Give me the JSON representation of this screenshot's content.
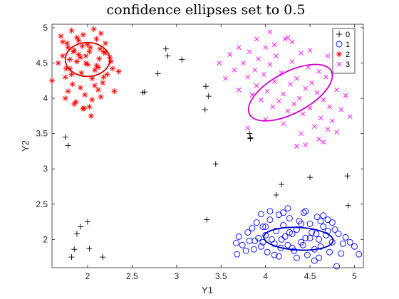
{
  "chart_data": {
    "type": "scatter",
    "title": "confidence ellipses set to 0.5",
    "xlabel": "Y1",
    "ylabel": "Y2",
    "xlim": [
      1.6,
      5.1
    ],
    "ylim": [
      1.6,
      5.05
    ],
    "xticks": [
      2,
      2.5,
      3,
      3.5,
      4,
      4.5,
      5
    ],
    "yticks": [
      2,
      2.5,
      3,
      3.5,
      4,
      4.5,
      5
    ],
    "grid": false,
    "legend_position": "top-right",
    "series": [
      {
        "name": "0",
        "marker": "plus",
        "color": "#000000",
        "x": [
          1.75,
          1.78,
          1.82,
          1.85,
          1.88,
          1.92,
          2.0,
          2.02,
          2.17,
          2.62,
          2.64,
          2.79,
          2.88,
          2.9,
          3.06,
          3.32,
          3.33,
          3.36,
          3.34,
          3.44,
          3.82,
          3.83,
          3.83,
          4.12,
          4.18,
          4.5,
          4.92,
          4.93
        ],
        "y": [
          3.45,
          3.33,
          1.75,
          1.86,
          2.08,
          2.18,
          2.25,
          1.87,
          1.75,
          4.08,
          4.09,
          4.35,
          4.7,
          4.6,
          4.55,
          3.84,
          4.17,
          4.03,
          2.28,
          3.07,
          3.5,
          3.44,
          3.43,
          2.63,
          2.78,
          2.88,
          2.9,
          2.48
        ]
      },
      {
        "name": "1",
        "marker": "circle",
        "color": "#0000ff",
        "ellipse": {
          "cx": 4.37,
          "cy": 2.01,
          "rx": 0.39,
          "ry": 0.16,
          "angle": 3
        },
        "x": [
          3.67,
          3.68,
          3.7,
          3.74,
          3.78,
          3.8,
          3.82,
          3.85,
          3.87,
          3.9,
          3.92,
          3.95,
          3.97,
          4.0,
          4.02,
          4.05,
          4.07,
          4.1,
          4.12,
          4.15,
          4.17,
          4.2,
          4.22,
          4.25,
          4.27,
          4.3,
          4.32,
          4.35,
          4.38,
          4.4,
          4.43,
          4.45,
          4.47,
          4.5,
          4.52,
          4.55,
          4.58,
          4.6,
          4.62,
          4.65,
          4.68,
          4.7,
          4.72,
          4.75,
          4.78,
          4.8,
          4.85,
          4.9,
          4.95,
          5.0,
          5.05,
          3.95,
          4.05,
          4.15,
          4.25,
          4.35,
          4.45,
          4.55,
          4.65,
          4.75,
          4.0,
          4.1,
          4.2,
          4.3,
          4.4,
          4.5,
          4.6,
          4.7,
          3.88,
          4.18,
          4.42,
          4.62,
          4.82,
          3.97,
          4.27,
          4.57,
          4.87
        ],
        "y": [
          1.95,
          1.79,
          2.04,
          1.92,
          1.84,
          2.1,
          1.98,
          2.16,
          1.86,
          2.24,
          2.02,
          1.9,
          2.18,
          2.06,
          1.82,
          2.28,
          2.0,
          1.94,
          2.12,
          2.35,
          1.88,
          2.2,
          2.04,
          1.92,
          2.3,
          2.08,
          1.84,
          2.14,
          2.26,
          1.96,
          2.38,
          2.02,
          1.78,
          2.22,
          2.1,
          1.86,
          2.32,
          2.0,
          1.9,
          2.18,
          2.06,
          2.28,
          1.82,
          1.96,
          2.14,
          1.62,
          1.8,
          2.03,
          1.96,
          1.9,
          1.79,
          2.36,
          2.4,
          1.76,
          2.44,
          1.74,
          2.4,
          1.7,
          2.34,
          2.24,
          2.18,
          1.78,
          2.38,
          1.88,
          2.22,
          2.02,
          1.74,
          2.12,
          1.98,
          2.0,
          1.92,
          2.26,
          2.08,
          1.96,
          2.1,
          2.08,
          1.94
        ]
      },
      {
        "name": "2",
        "marker": "asterisk",
        "color": "#ff0000",
        "ellipse": {
          "cx": 2.0,
          "cy": 4.55,
          "rx": 0.25,
          "ry": 0.24,
          "angle": 0
        },
        "x": [
          1.6,
          1.67,
          1.7,
          1.72,
          1.75,
          1.77,
          1.78,
          1.8,
          1.82,
          1.83,
          1.85,
          1.87,
          1.88,
          1.9,
          1.92,
          1.93,
          1.95,
          1.97,
          1.98,
          2.0,
          2.02,
          2.03,
          2.05,
          2.07,
          2.08,
          2.1,
          2.12,
          2.13,
          2.15,
          2.17,
          2.18,
          2.2,
          2.22,
          2.25,
          2.28,
          2.3,
          2.35,
          1.75,
          1.8,
          1.85,
          1.9,
          1.95,
          2.0,
          2.05,
          2.1,
          2.15,
          2.2,
          1.78,
          1.88,
          1.98,
          2.08,
          2.18,
          1.82,
          1.92,
          2.02,
          2.12,
          1.72,
          2.04,
          1.96,
          2.01,
          1.84,
          2.26,
          1.76,
          1.94,
          2.14
        ],
        "y": [
          4.25,
          4.5,
          4.88,
          4.6,
          4.3,
          4.78,
          4.1,
          4.42,
          4.96,
          4.2,
          4.68,
          3.95,
          4.52,
          4.82,
          4.15,
          4.36,
          4.9,
          4.05,
          4.6,
          4.48,
          3.88,
          4.72,
          4.28,
          4.98,
          4.4,
          4.84,
          4.12,
          4.56,
          4.92,
          4.22,
          4.66,
          4.78,
          4.34,
          4.58,
          4.42,
          4.1,
          4.38,
          4.0,
          4.55,
          3.92,
          4.62,
          3.85,
          4.76,
          3.98,
          4.46,
          4.02,
          4.64,
          4.72,
          4.86,
          4.5,
          4.18,
          4.3,
          4.34,
          4.58,
          4.66,
          4.44,
          4.8,
          3.75,
          3.86,
          5.08,
          4.66,
          4.52,
          4.42,
          4.74,
          4.7
        ]
      },
      {
        "name": "3",
        "marker": "x",
        "color": "#ff00ff",
        "ellipse": {
          "cx": 4.28,
          "cy": 4.08,
          "rx": 0.52,
          "ry": 0.29,
          "angle": -28
        },
        "x": [
          3.48,
          3.55,
          3.6,
          3.65,
          3.7,
          3.75,
          3.8,
          3.82,
          3.85,
          3.88,
          3.9,
          3.92,
          3.95,
          3.98,
          4.0,
          4.02,
          4.05,
          4.08,
          4.1,
          4.12,
          4.15,
          4.18,
          4.2,
          4.22,
          4.25,
          4.28,
          4.3,
          4.32,
          4.35,
          4.38,
          4.4,
          4.42,
          4.45,
          4.48,
          4.5,
          4.52,
          4.55,
          4.58,
          4.6,
          4.62,
          4.65,
          4.68,
          4.7,
          4.72,
          4.75,
          4.8,
          4.85,
          4.9,
          4.95,
          3.7,
          3.9,
          4.1,
          4.3,
          4.5,
          4.7,
          3.8,
          4.0,
          4.2,
          4.4,
          4.6,
          4.8,
          4.05,
          4.25,
          4.45,
          4.65,
          4.35
        ],
        "y": [
          4.5,
          4.28,
          4.62,
          4.4,
          4.12,
          4.5,
          4.3,
          4.66,
          4.05,
          4.4,
          4.18,
          4.56,
          3.98,
          4.34,
          4.72,
          4.1,
          4.48,
          3.88,
          4.24,
          4.6,
          3.96,
          4.36,
          4.06,
          4.84,
          3.82,
          4.2,
          4.52,
          3.92,
          4.28,
          4.0,
          4.64,
          3.78,
          4.14,
          4.44,
          3.86,
          4.22,
          3.6,
          4.08,
          4.38,
          3.72,
          3.98,
          4.3,
          3.56,
          3.88,
          3.68,
          4.12,
          3.84,
          4.04,
          3.74,
          4.72,
          4.84,
          4.76,
          4.8,
          4.68,
          4.6,
          3.58,
          3.7,
          3.64,
          3.5,
          3.42,
          3.52,
          4.94,
          4.86,
          3.34,
          3.38,
          3.32
        ]
      }
    ]
  }
}
